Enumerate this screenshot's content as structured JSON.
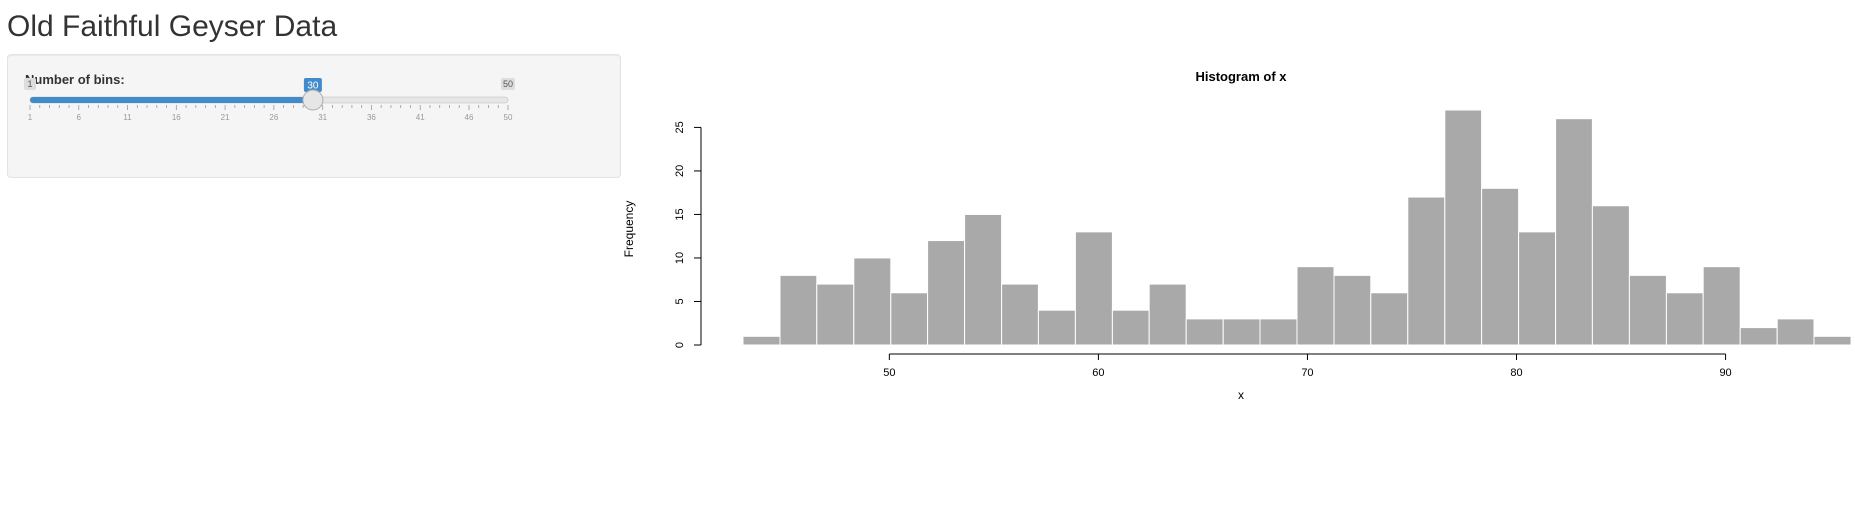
{
  "app": {
    "title": "Old Faithful Geyser Data"
  },
  "sidebar": {
    "slider": {
      "label": "Number of bins:",
      "min": 1,
      "max": 50,
      "value": 30,
      "tick_labels": [
        "1",
        "6",
        "11",
        "16",
        "21",
        "26",
        "31",
        "36",
        "41",
        "46",
        "50"
      ],
      "accent_color": "#428bca"
    }
  },
  "chart_data": {
    "type": "bar",
    "title": "Histogram of x",
    "xlabel": "x",
    "ylabel": "Frequency",
    "xlim": [
      43,
      96
    ],
    "ylim": [
      0,
      27
    ],
    "xticks": [
      50,
      60,
      70,
      80,
      90
    ],
    "yticks": [
      0,
      5,
      10,
      15,
      20,
      25
    ],
    "bar_color": "#a9a9a9",
    "bin_edges": [
      43,
      44.77,
      46.53,
      48.3,
      50.07,
      51.83,
      53.6,
      55.37,
      57.13,
      58.9,
      60.67,
      62.43,
      64.2,
      65.97,
      67.73,
      69.5,
      71.27,
      73.03,
      74.8,
      76.57,
      78.33,
      80.1,
      81.87,
      83.63,
      85.4,
      87.17,
      88.93,
      90.7,
      92.47,
      94.23,
      96
    ],
    "values": [
      1,
      8,
      7,
      10,
      6,
      12,
      15,
      7,
      4,
      13,
      4,
      7,
      3,
      3,
      3,
      9,
      8,
      6,
      17,
      27,
      18,
      13,
      26,
      16,
      8,
      6,
      9,
      2,
      3,
      1
    ]
  }
}
